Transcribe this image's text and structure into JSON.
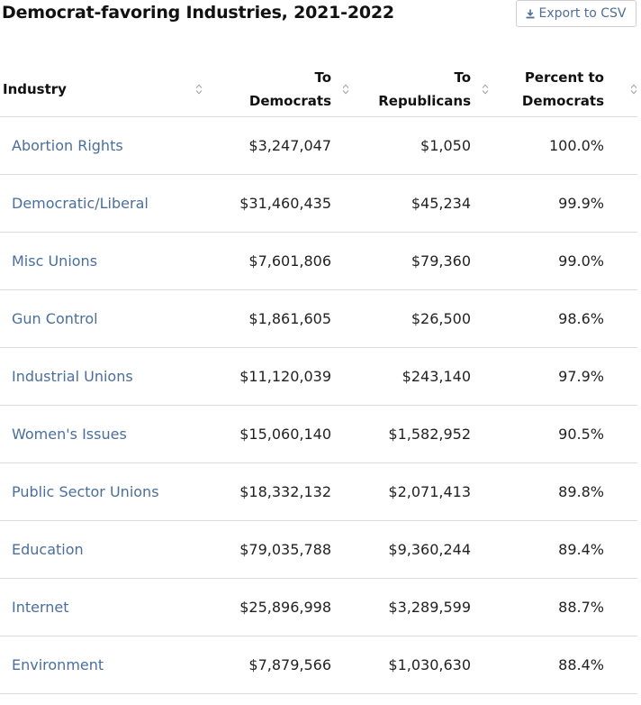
{
  "title": "Democrat-favoring Industries, 2021-2022",
  "export_button": {
    "icon": "download-icon",
    "label": "Export to CSV"
  },
  "colors": {
    "link": "#4a6f9c",
    "export_text": "#4f6f99",
    "border": "#dddddd"
  },
  "table": {
    "columns": [
      {
        "lines": [
          "Industry"
        ]
      },
      {
        "lines": [
          "To",
          "Democrats"
        ]
      },
      {
        "lines": [
          "To",
          "Republicans"
        ]
      },
      {
        "lines": [
          "Percent to",
          "Democrats"
        ]
      }
    ],
    "rows": [
      {
        "industry": "Abortion Rights",
        "democrats": "$3,247,047",
        "republicans": "$1,050",
        "percent": "100.0%"
      },
      {
        "industry": "Democratic/Liberal",
        "democrats": "$31,460,435",
        "republicans": "$45,234",
        "percent": "99.9%"
      },
      {
        "industry": "Misc Unions",
        "democrats": "$7,601,806",
        "republicans": "$79,360",
        "percent": "99.0%"
      },
      {
        "industry": "Gun Control",
        "democrats": "$1,861,605",
        "republicans": "$26,500",
        "percent": "98.6%"
      },
      {
        "industry": "Industrial Unions",
        "democrats": "$11,120,039",
        "republicans": "$243,140",
        "percent": "97.9%"
      },
      {
        "industry": "Women's Issues",
        "democrats": "$15,060,140",
        "republicans": "$1,582,952",
        "percent": "90.5%"
      },
      {
        "industry": "Public Sector Unions",
        "democrats": "$18,332,132",
        "republicans": "$2,071,413",
        "percent": "89.8%"
      },
      {
        "industry": "Education",
        "democrats": "$79,035,788",
        "republicans": "$9,360,244",
        "percent": "89.4%"
      },
      {
        "industry": "Internet",
        "democrats": "$25,896,998",
        "republicans": "$3,289,599",
        "percent": "88.7%"
      },
      {
        "industry": "Environment",
        "democrats": "$7,879,566",
        "republicans": "$1,030,630",
        "percent": "88.4%"
      }
    ]
  }
}
